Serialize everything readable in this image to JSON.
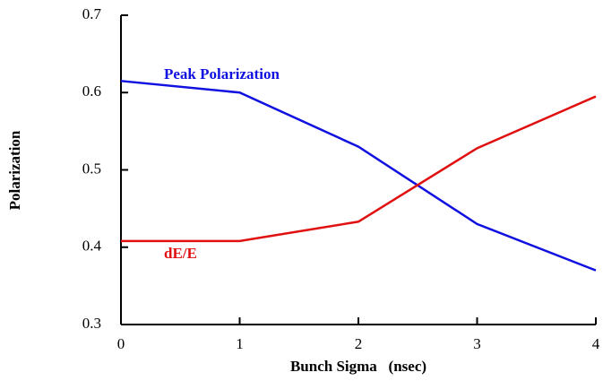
{
  "chart_data": {
    "type": "line",
    "x_label": "Bunch Sigma   (nsec)",
    "y_label": "Polarization",
    "x": [
      0,
      1,
      2,
      3,
      4
    ],
    "series": [
      {
        "name": "Peak Polarization",
        "color": "#1010e0",
        "values": [
          0.615,
          0.6,
          0.53,
          0.43,
          0.37
        ]
      },
      {
        "name": "dE/E",
        "color": "#e01010",
        "values": [
          0.408,
          0.408,
          0.433,
          0.528,
          0.595
        ]
      }
    ],
    "xlim": [
      0,
      4
    ],
    "xticks": [
      0,
      1,
      2,
      3,
      4
    ],
    "ylim": [
      0.3,
      0.7
    ],
    "yticks": [
      0.3,
      0.4,
      0.5,
      0.6,
      0.7
    ]
  }
}
